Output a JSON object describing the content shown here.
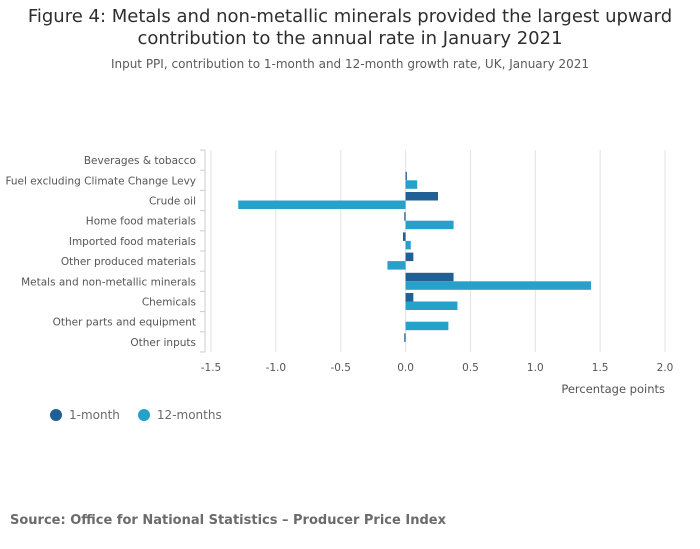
{
  "title_lines": [
    "Figure 4: Metals and non-metallic minerals provided the largest upward",
    "contribution to the annual rate in January 2021"
  ],
  "subtitle": "Input PPI, contribution to 1-month and 12-month growth rate, UK, January 2021",
  "source": "Source: Office for National Statistics – Producer Price Index",
  "colors": {
    "one_month": "#206095",
    "twelve_months": "#27a0cc"
  },
  "chart_data": {
    "type": "bar",
    "orientation": "horizontal",
    "categories": [
      "Beverages & tobacco",
      "Fuel excluding Climate Change Levy",
      "Crude oil",
      "Home food materials",
      "Imported food materials",
      "Other produced materials",
      "Metals and non-metallic minerals",
      "Chemicals",
      "Other parts and equipment",
      "Other inputs"
    ],
    "series": [
      {
        "name": "1-month",
        "values": [
          0.0,
          0.01,
          0.25,
          -0.01,
          -0.02,
          0.06,
          0.37,
          0.06,
          0.0,
          -0.01
        ]
      },
      {
        "name": "12-months",
        "values": [
          0.0,
          0.09,
          -1.29,
          0.37,
          0.04,
          -0.14,
          1.43,
          0.4,
          0.33,
          0.0
        ]
      }
    ],
    "xlabel": "Percentage points",
    "ylabel": "",
    "xlim": [
      -1.5,
      2.0
    ],
    "xticks": [
      "-1.5",
      "-1.0",
      "-0.5",
      "0.0",
      "0.5",
      "1.0",
      "1.5",
      "2.0"
    ],
    "grid": true,
    "legend_position": "bottom-left"
  }
}
